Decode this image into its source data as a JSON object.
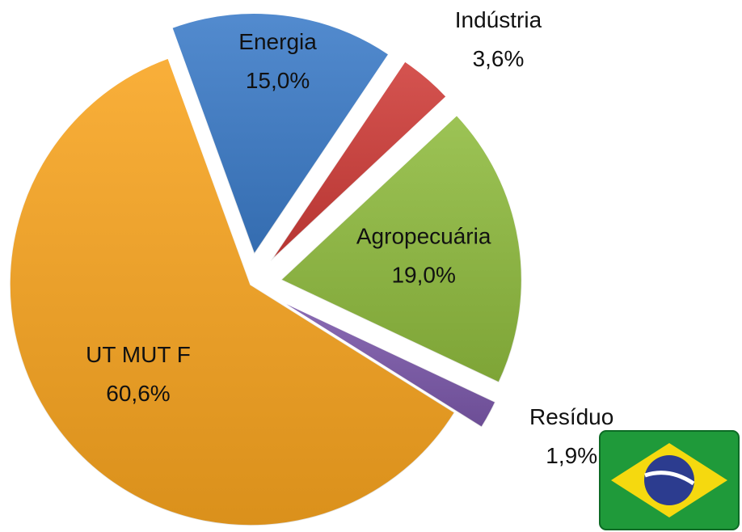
{
  "chart_data": {
    "type": "pie",
    "categories": [
      "Energia",
      "Indústria",
      "Agropecuária",
      "Resíduo",
      "UT MUT F"
    ],
    "values": [
      15.0,
      3.6,
      19.0,
      1.9,
      60.6
    ],
    "value_labels": [
      "15,0%",
      "3,6%",
      "19,0%",
      "1,9%",
      "60,6%"
    ],
    "colors": [
      "#3b7bc8",
      "#cf3c38",
      "#8fbb3e",
      "#7b58aa",
      "#f8a41f"
    ]
  }
}
